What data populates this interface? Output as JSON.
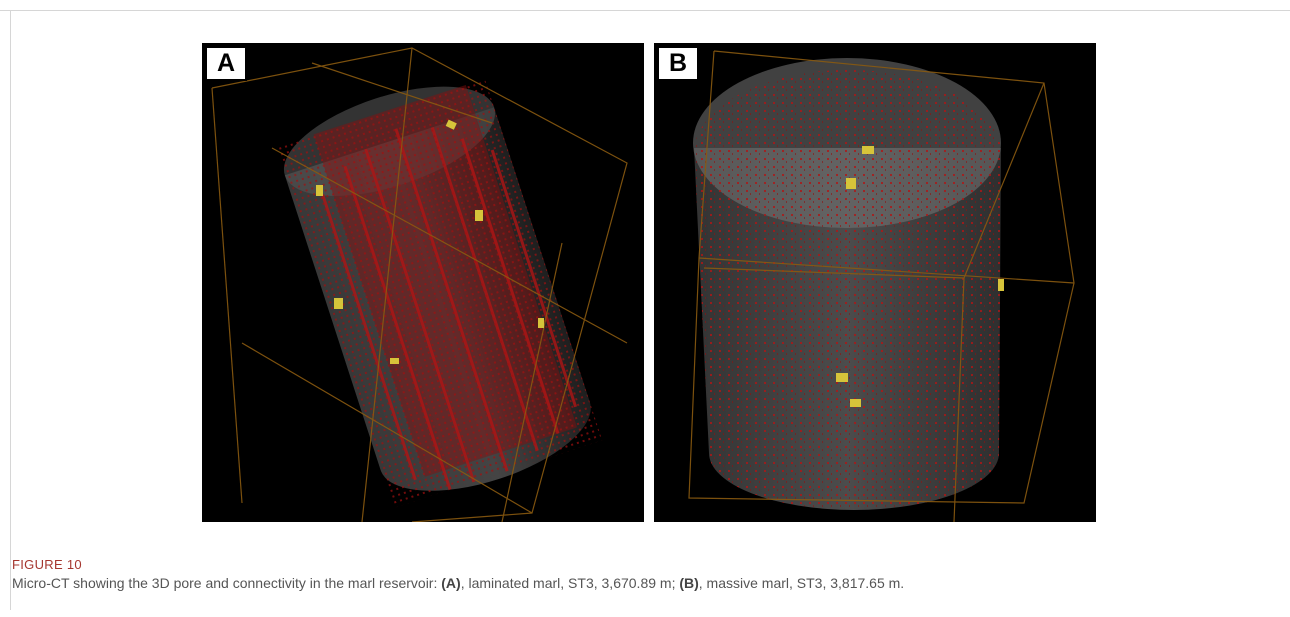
{
  "panels": [
    {
      "label": "A"
    },
    {
      "label": "B"
    }
  ],
  "figure": {
    "label": "FIGURE 10",
    "caption": [
      "Micro-CT showing the 3D pore and connectivity in the marl reservoir: ",
      "(A)",
      ", laminated marl, ST3, 3,670.89 m; ",
      "(B)",
      ", massive marl, ST3, 3,817.65 m."
    ]
  }
}
